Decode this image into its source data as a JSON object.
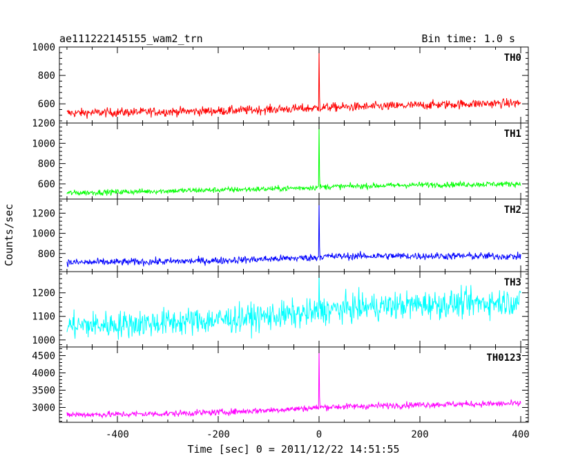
{
  "header": {
    "title": "ae111222145155_wam2_trn",
    "bin_time": "Bin time: 1.0 s"
  },
  "chart_data": {
    "type": "line",
    "xlabel": "Time [sec] 0 = 2011/12/22 14:51:55",
    "ylabel": "Counts/sec",
    "xlim": [
      -515,
      415
    ],
    "x_ticks": [
      -400,
      -200,
      0,
      200,
      400
    ],
    "panels": [
      {
        "name": "TH0",
        "color": "#ff0000",
        "ylim": [
          465,
          1000
        ],
        "y_ticks": [
          600,
          800,
          1000
        ],
        "x": [
          -500,
          -400,
          -300,
          -200,
          -100,
          -5,
          0,
          5,
          100,
          200,
          300,
          400
        ],
        "values": [
          535,
          540,
          545,
          550,
          560,
          570,
          1000,
          575,
          580,
          590,
          600,
          605
        ],
        "noise": 35
      },
      {
        "name": "TH1",
        "color": "#00ff00",
        "ylim": [
          450,
          1200
        ],
        "y_ticks": [
          600,
          800,
          1000,
          1200
        ],
        "x": [
          -500,
          -400,
          -300,
          -200,
          -100,
          -5,
          0,
          5,
          100,
          200,
          300,
          400
        ],
        "values": [
          510,
          520,
          530,
          540,
          550,
          565,
          1200,
          570,
          580,
          590,
          595,
          600
        ],
        "noise": 30
      },
      {
        "name": "TH2",
        "color": "#0000ff",
        "ylim": [
          620,
          1340
        ],
        "y_ticks": [
          800,
          1000,
          1200
        ],
        "x": [
          -500,
          -400,
          -300,
          -200,
          -100,
          -5,
          0,
          5,
          100,
          200,
          300,
          400
        ],
        "values": [
          710,
          715,
          720,
          730,
          745,
          760,
          1340,
          770,
          775,
          775,
          775,
          770
        ],
        "noise": 40
      },
      {
        "name": "TH3",
        "color": "#00ffff",
        "ylim": [
          970,
          1290
        ],
        "y_ticks": [
          1000,
          1100,
          1200
        ],
        "x": [
          -500,
          -400,
          -300,
          -200,
          -100,
          -5,
          0,
          5,
          100,
          200,
          300,
          400
        ],
        "values": [
          1060,
          1065,
          1075,
          1085,
          1100,
          1115,
          1290,
          1125,
          1140,
          1150,
          1155,
          1165
        ],
        "noise": 65
      },
      {
        "name": "TH0123",
        "color": "#ff00ff",
        "ylim": [
          2570,
          4750
        ],
        "y_ticks": [
          3000,
          3500,
          4000,
          4500
        ],
        "x": [
          -500,
          -400,
          -300,
          -200,
          -100,
          -5,
          0,
          5,
          100,
          200,
          300,
          400
        ],
        "values": [
          2790,
          2800,
          2820,
          2860,
          2920,
          2990,
          4750,
          3010,
          3040,
          3080,
          3100,
          3110
        ],
        "noise": 100
      }
    ]
  }
}
